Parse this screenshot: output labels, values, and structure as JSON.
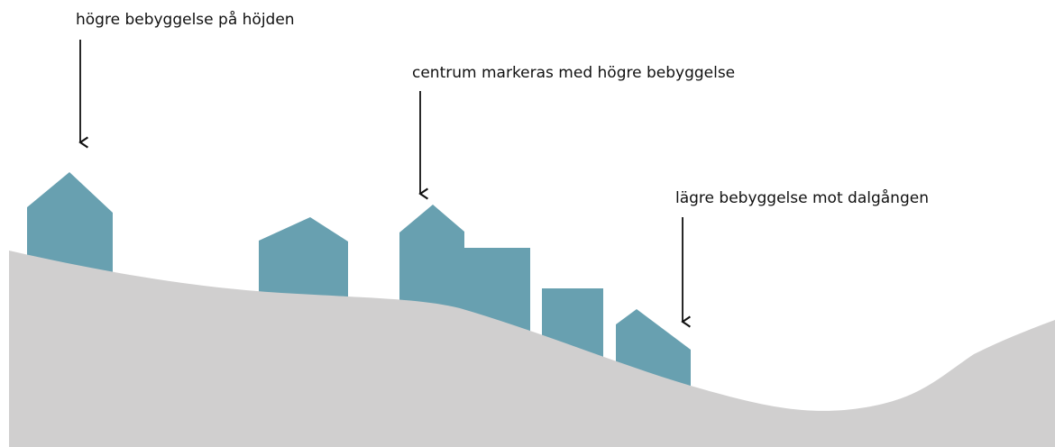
{
  "annotations": [
    {
      "label": "högre bebyggelse på höjden"
    },
    {
      "label": "centrum markeras med högre bebyggelse"
    },
    {
      "label": "lägre bebyggelse mot dalgången"
    }
  ]
}
